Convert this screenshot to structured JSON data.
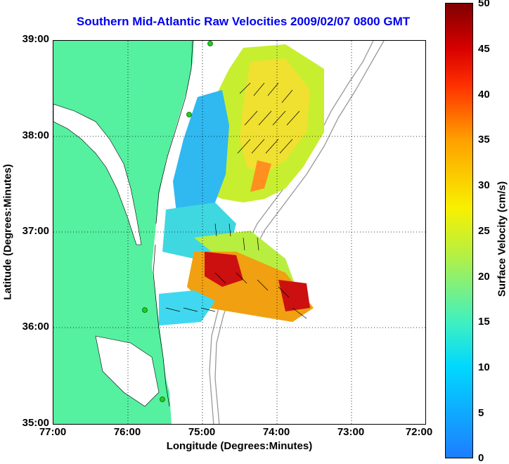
{
  "title": "Southern Mid-Atlantic Raw Velocities 2009/02/07 0800 GMT",
  "x_axis": {
    "label": "Longitude (Degrees:Minutes)",
    "ticks": [
      "77:00",
      "76:00",
      "75:00",
      "74:00",
      "73:00",
      "72:00"
    ]
  },
  "y_axis": {
    "label": "Latitude (Degrees:Minutes)",
    "ticks": [
      "39:00",
      "38:00",
      "37:00",
      "36:00",
      "35:00"
    ]
  },
  "colorbar": {
    "label": "Surface Velocity (cm/s)",
    "ticks": [
      "50",
      "45",
      "40",
      "35",
      "30",
      "25",
      "20",
      "15",
      "10",
      "5",
      "0"
    ],
    "range": [
      0,
      50
    ]
  },
  "colors": {
    "land": "#55f0a0",
    "title": "#0000ee",
    "bathymetry": "#999999",
    "grid": "#000000",
    "station": "#22cc22"
  }
}
